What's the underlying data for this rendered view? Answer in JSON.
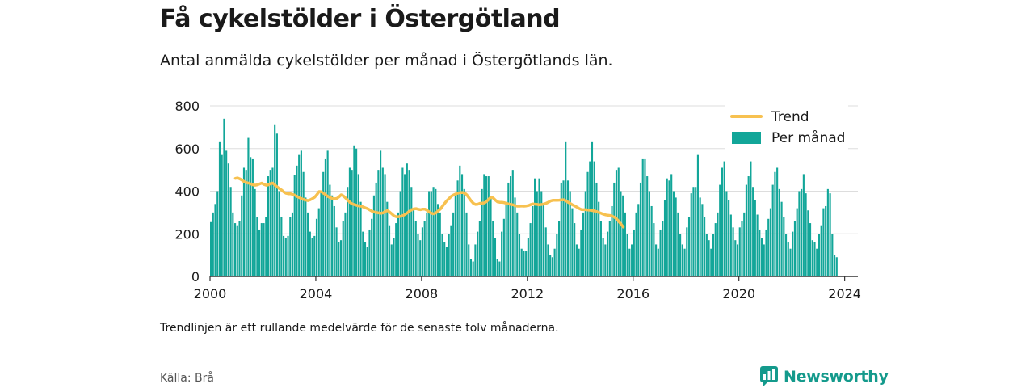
{
  "title": "Få cykelstölder i Östergötland",
  "subtitle": "Antal anmälda cykelstölder per månad i Östergötlands län.",
  "note": "Trendlinjen är ett rullande medelvärde för de senaste tolv månaderna.",
  "source": "Källa: Brå",
  "brand": {
    "name": "Newsworthy",
    "icon": "newsworthy-logo-icon"
  },
  "colors": {
    "bars": "#12a699",
    "trend": "#f7c150",
    "axis": "#333333",
    "grid": "#dddddd",
    "brand": "#149a8c"
  },
  "chart_data": {
    "type": "bar",
    "x_unit": "month",
    "x_start": "2000-01",
    "xlim": [
      2000,
      2024.5
    ],
    "ylim": [
      0,
      800
    ],
    "yticks": [
      0,
      200,
      400,
      600,
      800
    ],
    "xticks": [
      2000,
      2004,
      2008,
      2012,
      2016,
      2020,
      2024
    ],
    "grid": "horizontal",
    "legend": {
      "position": "top-right",
      "entries": [
        "Trend",
        "Per månad"
      ]
    },
    "series": [
      {
        "name": "Per månad",
        "type": "bar",
        "values": [
          255,
          300,
          340,
          400,
          630,
          570,
          740,
          590,
          530,
          420,
          300,
          250,
          240,
          260,
          380,
          510,
          500,
          650,
          560,
          550,
          410,
          280,
          220,
          250,
          250,
          280,
          470,
          500,
          510,
          710,
          670,
          400,
          280,
          190,
          180,
          190,
          280,
          300,
          475,
          520,
          570,
          590,
          490,
          370,
          300,
          210,
          180,
          190,
          270,
          320,
          400,
          490,
          550,
          590,
          430,
          380,
          330,
          230,
          160,
          170,
          260,
          300,
          420,
          510,
          500,
          615,
          600,
          480,
          350,
          210,
          160,
          140,
          220,
          270,
          380,
          440,
          500,
          590,
          510,
          480,
          350,
          240,
          150,
          180,
          250,
          300,
          400,
          510,
          480,
          530,
          500,
          420,
          320,
          260,
          200,
          170,
          230,
          260,
          300,
          400,
          400,
          420,
          410,
          340,
          300,
          200,
          160,
          140,
          200,
          240,
          300,
          380,
          450,
          520,
          480,
          410,
          300,
          150,
          80,
          70,
          150,
          210,
          260,
          410,
          480,
          470,
          470,
          370,
          260,
          180,
          80,
          70,
          210,
          270,
          350,
          440,
          470,
          500,
          370,
          300,
          200,
          130,
          120,
          120,
          180,
          250,
          330,
          460,
          400,
          460,
          400,
          340,
          230,
          150,
          100,
          90,
          130,
          200,
          260,
          440,
          450,
          630,
          450,
          400,
          320,
          250,
          150,
          130,
          220,
          300,
          400,
          490,
          540,
          630,
          540,
          440,
          350,
          260,
          180,
          150,
          210,
          260,
          330,
          440,
          500,
          510,
          400,
          380,
          300,
          200,
          130,
          150,
          220,
          300,
          340,
          440,
          550,
          550,
          470,
          400,
          330,
          250,
          150,
          130,
          220,
          260,
          360,
          460,
          450,
          480,
          400,
          370,
          300,
          200,
          150,
          130,
          230,
          280,
          390,
          420,
          420,
          570,
          370,
          340,
          280,
          200,
          170,
          130,
          200,
          250,
          300,
          430,
          510,
          540,
          400,
          360,
          290,
          230,
          170,
          150,
          230,
          260,
          300,
          430,
          470,
          540,
          420,
          360,
          290,
          220,
          180,
          150,
          220,
          270,
          320,
          430,
          490,
          510,
          410,
          350,
          280,
          200,
          160,
          130,
          210,
          260,
          320,
          400,
          410,
          480,
          390,
          310,
          250,
          170,
          160,
          130,
          200,
          240,
          320,
          330,
          410,
          390,
          200,
          100,
          90,
          0,
          0,
          0
        ]
      },
      {
        "name": "Trend",
        "type": "line",
        "start": "2000-12",
        "values": [
          460,
          462,
          458,
          452,
          444,
          440,
          438,
          434,
          430,
          428,
          430,
          434,
          438,
          432,
          428,
          430,
          436,
          438,
          428,
          420,
          412,
          405,
          396,
          390,
          388,
          388,
          385,
          381,
          375,
          370,
          365,
          361,
          358,
          356,
          360,
          365,
          372,
          384,
          398,
          397,
          390,
          383,
          375,
          370,
          366,
          364,
          366,
          373,
          383,
          378,
          368,
          357,
          348,
          340,
          337,
          334,
          331,
          330,
          326,
          322,
          318,
          312,
          306,
          302,
          300,
          298,
          296,
          298,
          305,
          309,
          302,
          293,
          284,
          280,
          280,
          282,
          285,
          291,
          298,
          306,
          313,
          317,
          318,
          315,
          313,
          316,
          316,
          310,
          302,
          296,
          294,
          298,
          307,
          316,
          330,
          343,
          356,
          366,
          376,
          382,
          387,
          391,
          393,
          394,
          392,
          383,
          369,
          354,
          343,
          338,
          339,
          343,
          344,
          345,
          352,
          363,
          372,
          368,
          358,
          350,
          348,
          348,
          346,
          343,
          340,
          338,
          336,
          332,
          330,
          330,
          331,
          330,
          331,
          333,
          337,
          340,
          339,
          338,
          336,
          338,
          340,
          343,
          348,
          354,
          357,
          357,
          357,
          358,
          359,
          360,
          355,
          348,
          342,
          336,
          331,
          325,
          319,
          314,
          313,
          313,
          312,
          311,
          309,
          307,
          304,
          300,
          296,
          292,
          289,
          287,
          286,
          283,
          278,
          270,
          258,
          245,
          232
        ]
      }
    ]
  }
}
